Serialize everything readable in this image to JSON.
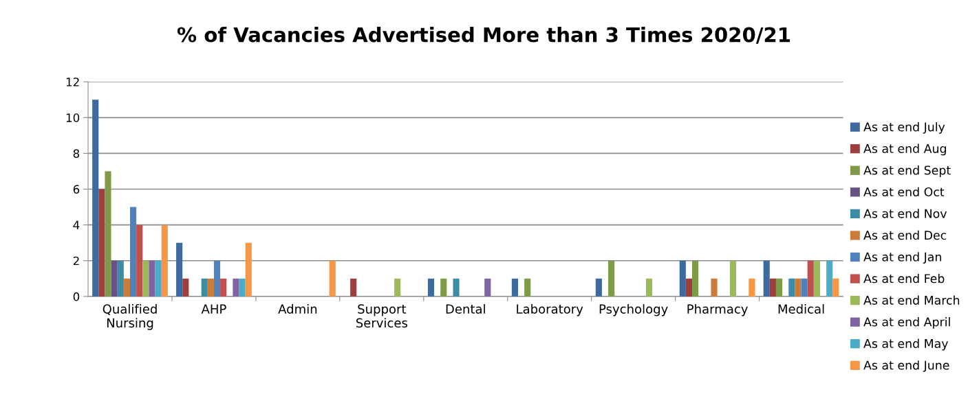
{
  "chart_data": {
    "type": "bar",
    "title": "% of Vacancies Advertised More than 3 Times 2020/21",
    "categories": [
      "Qualified\nNursing",
      "AHP",
      "Admin",
      "Support\nServices",
      "Dental",
      "Laboratory",
      "Psychology",
      "Pharmacy",
      "Medical"
    ],
    "series": [
      {
        "name": "As at end July",
        "color": "#3f6a9e",
        "values": [
          11,
          3,
          0,
          0,
          1,
          1,
          1,
          2,
          2
        ]
      },
      {
        "name": "As at end Aug",
        "color": "#9e3f3d",
        "values": [
          6,
          1,
          0,
          1,
          0,
          0,
          0,
          1,
          1
        ]
      },
      {
        "name": "As at end Sept",
        "color": "#7f9a48",
        "values": [
          7,
          0,
          0,
          0,
          1,
          1,
          2,
          2,
          1
        ]
      },
      {
        "name": "As at end Oct",
        "color": "#695185",
        "values": [
          2,
          0,
          0,
          0,
          0,
          0,
          0,
          0,
          0
        ]
      },
      {
        "name": "As at end Nov",
        "color": "#3c8da3",
        "values": [
          2,
          1,
          0,
          0,
          1,
          0,
          0,
          0,
          1
        ]
      },
      {
        "name": "As at end Dec",
        "color": "#cc7b38",
        "values": [
          1,
          1,
          0,
          0,
          0,
          0,
          0,
          1,
          1
        ]
      },
      {
        "name": "As at end Jan",
        "color": "#4f81bd",
        "values": [
          5,
          2,
          0,
          0,
          0,
          0,
          0,
          0,
          1
        ]
      },
      {
        "name": "As at end Feb",
        "color": "#c0504d",
        "values": [
          4,
          1,
          0,
          0,
          0,
          0,
          0,
          0,
          2
        ]
      },
      {
        "name": "As at end March",
        "color": "#9bbb59",
        "values": [
          2,
          0,
          0,
          1,
          0,
          0,
          1,
          2,
          2
        ]
      },
      {
        "name": "As at end April",
        "color": "#8064a2",
        "values": [
          2,
          1,
          0,
          0,
          1,
          0,
          0,
          0,
          0
        ]
      },
      {
        "name": "As at end May",
        "color": "#4bacc6",
        "values": [
          2,
          1,
          0,
          0,
          0,
          0,
          0,
          0,
          2
        ]
      },
      {
        "name": "As at end June",
        "color": "#f79646",
        "values": [
          4,
          3,
          2,
          0,
          0,
          0,
          0,
          1,
          1
        ]
      }
    ],
    "ylim": [
      0,
      12
    ],
    "yticks": [
      0,
      2,
      4,
      6,
      8,
      10,
      12
    ],
    "grid": "y",
    "legend": "right"
  }
}
